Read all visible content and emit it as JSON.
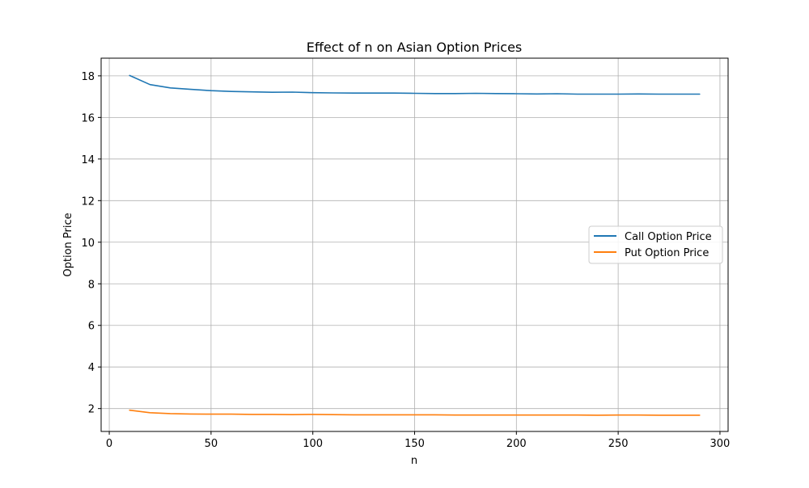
{
  "chart_data": {
    "type": "line",
    "title": "Effect of n on Asian Option Prices",
    "xlabel": "n",
    "ylabel": "Option Price",
    "xlim": [
      -4,
      304
    ],
    "ylim": [
      0.9,
      18.85
    ],
    "xticks": [
      0,
      50,
      100,
      150,
      200,
      250,
      300
    ],
    "yticks": [
      2,
      4,
      6,
      8,
      10,
      12,
      14,
      16,
      18
    ],
    "grid": true,
    "legend_position": "center-right",
    "x": [
      10,
      20,
      30,
      40,
      50,
      60,
      70,
      80,
      90,
      100,
      110,
      120,
      130,
      140,
      150,
      160,
      170,
      180,
      190,
      200,
      210,
      220,
      230,
      240,
      250,
      260,
      270,
      280,
      290
    ],
    "series": [
      {
        "name": "Call Option Price",
        "color": "#1f77b4",
        "values": [
          18.02,
          17.58,
          17.42,
          17.35,
          17.29,
          17.25,
          17.23,
          17.21,
          17.22,
          17.19,
          17.18,
          17.17,
          17.17,
          17.17,
          17.16,
          17.15,
          17.15,
          17.16,
          17.15,
          17.14,
          17.13,
          17.14,
          17.12,
          17.12,
          17.12,
          17.13,
          17.12,
          17.12,
          17.12
        ]
      },
      {
        "name": "Put Option Price",
        "color": "#ff7f0e",
        "values": [
          1.92,
          1.8,
          1.76,
          1.74,
          1.73,
          1.73,
          1.72,
          1.72,
          1.71,
          1.72,
          1.71,
          1.7,
          1.7,
          1.7,
          1.7,
          1.7,
          1.69,
          1.69,
          1.69,
          1.69,
          1.69,
          1.69,
          1.69,
          1.68,
          1.69,
          1.69,
          1.68,
          1.68,
          1.68
        ]
      }
    ]
  }
}
